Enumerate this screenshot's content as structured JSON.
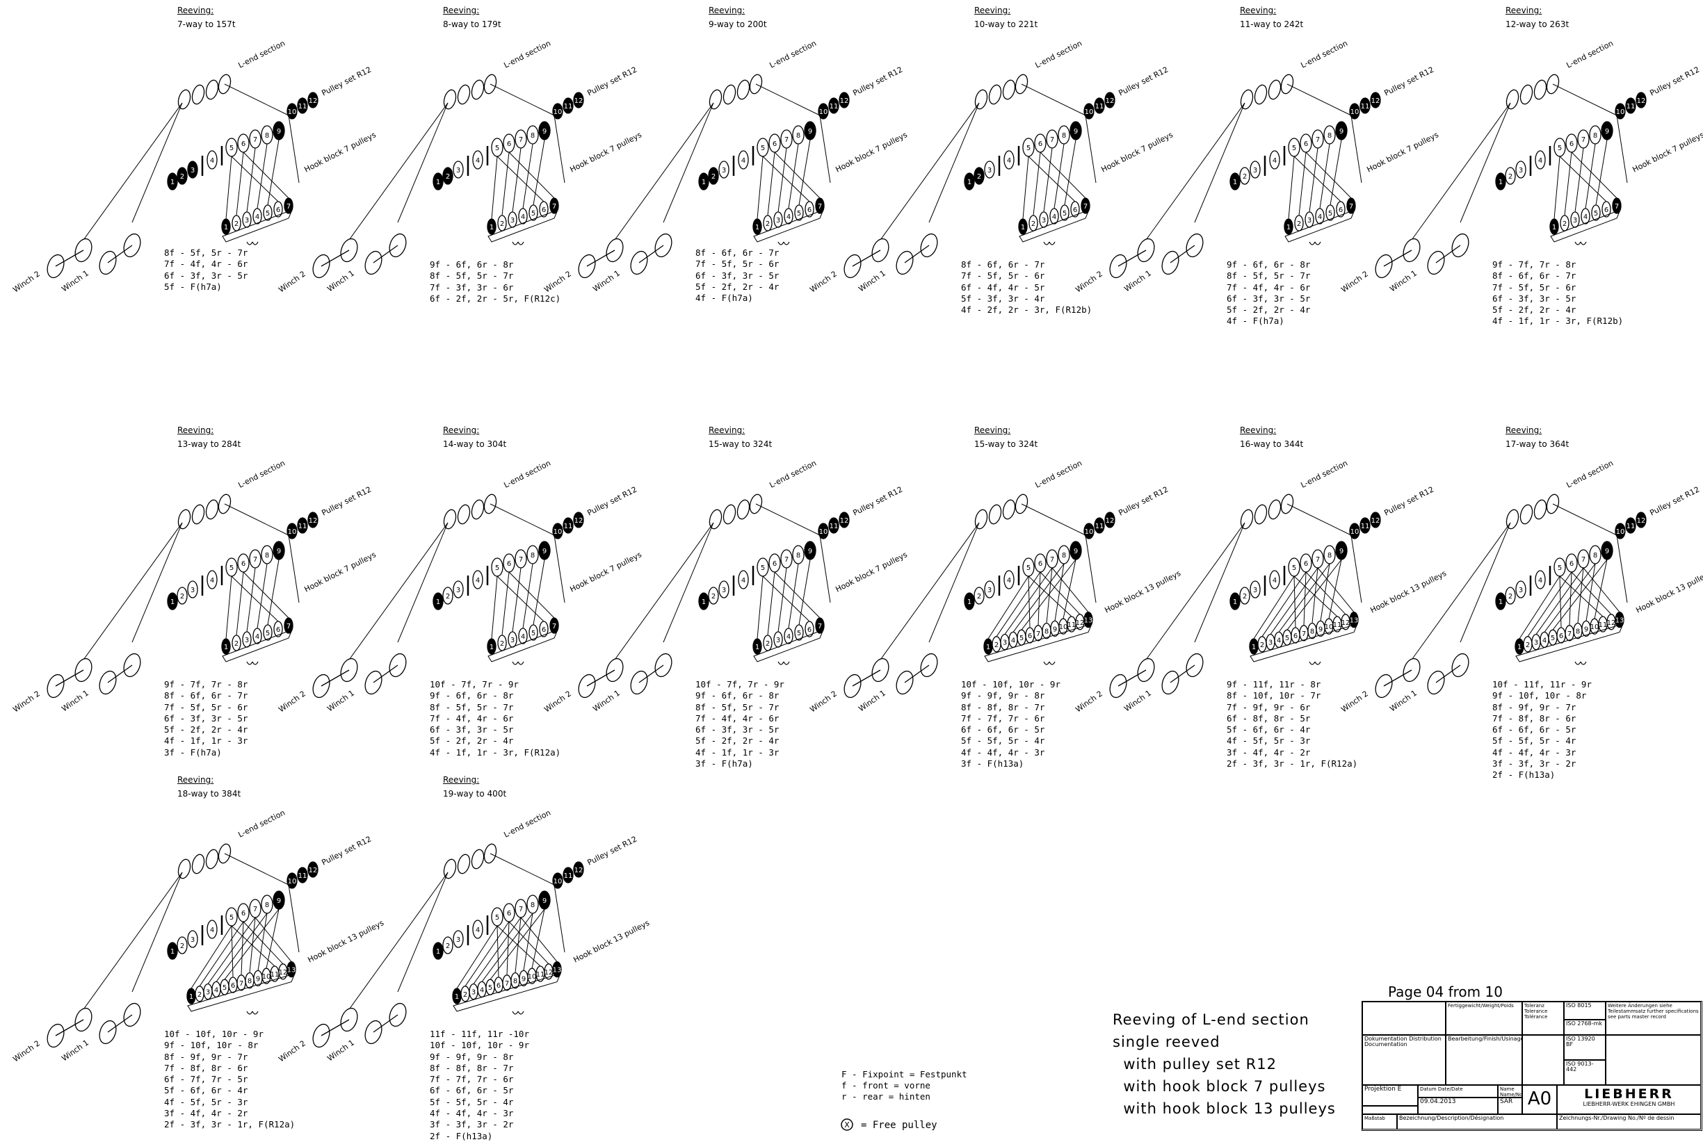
{
  "common": {
    "reeving_label": "Reeving:",
    "l_end_section": "L-end section",
    "pulley_set": "Pulley set R12",
    "hook_block_7": "Hook block 7 pulleys",
    "hook_block_13": "Hook block 13 pulleys",
    "winch_1": "Winch 1",
    "winch_2": "Winch 2"
  },
  "panels": [
    {
      "way": "7-way to 157t",
      "hook": "hook_block_7",
      "pulleys": 7,
      "rules": [
        "8f - 5f, 5r - 7r",
        "7f - 4f, 4r - 6r",
        "6f - 3f, 3r - 5r",
        "5f - F(h7a)"
      ]
    },
    {
      "way": "8-way to 179t",
      "hook": "hook_block_7",
      "pulleys": 7,
      "rules": [
        "9f - 6f, 6r - 8r",
        "8f - 5f, 5r - 7r",
        "7f - 3f, 3r - 6r",
        "6f - 2f, 2r - 5r, F(R12c)"
      ]
    },
    {
      "way": "9-way to 200t",
      "hook": "hook_block_7",
      "pulleys": 7,
      "rules": [
        "8f - 6f, 6r - 7r",
        "7f - 5f, 5r - 6r",
        "6f - 3f, 3r - 5r",
        "5f - 2f, 2r - 4r",
        "4f - F(h7a)"
      ]
    },
    {
      "way": "10-way to 221t",
      "hook": "hook_block_7",
      "pulleys": 7,
      "rules": [
        "8f - 6f, 6r - 7r",
        "7f - 5f, 5r - 6r",
        "6f - 4f, 4r - 5r",
        "5f - 3f, 3r - 4r",
        "4f - 2f, 2r - 3r, F(R12b)"
      ]
    },
    {
      "way": "11-way to 242t",
      "hook": "hook_block_7",
      "pulleys": 7,
      "rules": [
        "9f - 6f, 6r - 8r",
        "8f - 5f, 5r - 7r",
        "7f - 4f, 4r - 6r",
        "6f - 3f, 3r - 5r",
        "5f - 2f, 2r - 4r",
        "4f - F(h7a)"
      ]
    },
    {
      "way": "12-way to 263t",
      "hook": "hook_block_7",
      "pulleys": 7,
      "rules": [
        "9f - 7f, 7r - 8r",
        "8f - 6f, 6r - 7r",
        "7f - 5f, 5r - 6r",
        "6f - 3f, 3r - 5r",
        "5f - 2f, 2r - 4r",
        "4f - 1f, 1r - 3r, F(R12b)"
      ]
    },
    {
      "way": "13-way to 284t",
      "hook": "hook_block_7",
      "pulleys": 7,
      "rules": [
        "9f - 7f, 7r - 8r",
        "8f - 6f, 6r - 7r",
        "7f - 5f, 5r - 6r",
        "6f - 3f, 3r - 5r",
        "5f - 2f, 2r - 4r",
        "4f - 1f, 1r - 3r",
        "3f - F(h7a)"
      ]
    },
    {
      "way": "14-way to 304t",
      "hook": "hook_block_7",
      "pulleys": 7,
      "rules": [
        "10f - 7f, 7r - 9r",
        "9f - 6f, 6r - 8r",
        "8f - 5f, 5r - 7r",
        "7f - 4f, 4r - 6r",
        "6f - 3f, 3r - 5r",
        "5f - 2f, 2r - 4r",
        "4f - 1f, 1r - 3r, F(R12a)"
      ]
    },
    {
      "way": "15-way to 324t",
      "hook": "hook_block_7",
      "pulleys": 7,
      "rules": [
        "10f - 7f, 7r - 9r",
        "9f - 6f, 6r - 8r",
        "8f - 5f, 5r - 7r",
        "7f - 4f, 4r - 6r",
        "6f - 3f, 3r - 5r",
        "5f - 2f, 2r - 4r",
        "4f - 1f, 1r - 3r",
        "3f - F(h7a)"
      ]
    },
    {
      "way": "15-way to 324t",
      "hook": "hook_block_13",
      "pulleys": 13,
      "rules": [
        "10f - 10f, 10r - 9r",
        "9f - 9f, 9r - 8r",
        "8f - 8f, 8r - 7r",
        "7f - 7f, 7r - 6r",
        "6f - 6f, 6r - 5r",
        "5f - 5f, 5r - 4r",
        "4f - 4f, 4r - 3r",
        "3f - F(h13a)"
      ]
    },
    {
      "way": "16-way to 344t",
      "hook": "hook_block_13",
      "pulleys": 13,
      "rules": [
        "9f - 11f, 11r - 8r",
        "8f - 10f, 10r - 7r",
        "7f - 9f, 9r - 6r",
        "6f - 8f, 8r - 5r",
        "5f - 6f, 6r - 4r",
        "4f - 5f, 5r - 3r",
        "3f - 4f, 4r - 2r",
        "2f - 3f, 3r - 1r, F(R12a)"
      ]
    },
    {
      "way": "17-way to 364t",
      "hook": "hook_block_13",
      "pulleys": 13,
      "rules": [
        "10f - 11f, 11r - 9r",
        "9f - 10f, 10r - 8r",
        "8f - 9f, 9r - 7r",
        "7f - 8f, 8r - 6r",
        "6f - 6f, 6r - 5r",
        "5f - 5f, 5r - 4r",
        "4f - 4f, 4r - 3r",
        "3f - 3f, 3r - 2r",
        "2f - F(h13a)"
      ]
    },
    {
      "way": "18-way to 384t",
      "hook": "hook_block_13",
      "pulleys": 13,
      "rules": [
        "10f - 10f, 10r - 9r",
        "9f - 10f, 10r - 8r",
        "8f - 9f, 9r - 7r",
        "7f - 8f, 8r - 6r",
        "6f - 7f, 7r - 5r",
        "5f - 6f, 6r - 4r",
        "4f - 5f, 5r - 3r",
        "3f - 4f, 4r - 2r",
        "2f - 3f, 3r - 1r, F(R12a)"
      ]
    },
    {
      "way": "19-way to 400t",
      "hook": "hook_block_13",
      "pulleys": 13,
      "rules": [
        "11f - 11f, 11r -10r",
        "10f - 10f, 10r - 9r",
        "9f - 9f, 9r - 8r",
        "8f - 8f, 8r - 7r",
        "7f - 7f, 7r - 6r",
        "6f - 6f, 6r - 5r",
        "5f - 5f, 5r - 4r",
        "4f - 4f, 4r - 3r",
        "3f - 3f, 3r - 2r",
        "2f - F(h13a)"
      ]
    }
  ],
  "legend": {
    "fixpoint": "F - Fixpoint = Festpunkt",
    "front": "f - front = vorne",
    "rear": "r - rear = hinten",
    "free_pulley": "= Free pulley",
    "free_symbol": "X"
  },
  "title_lines": [
    "Reeving of L-end section",
    "single reeved",
    "  with pulley set R12",
    "  with hook block 7 pulleys",
    "  with hook block 13 pulleys"
  ],
  "page": "Page 04 from 10",
  "title_block": {
    "weight": "Fertiggewicht/Weight/Poids",
    "tolerances": "Toleranz Tolerance Tolérance",
    "dist": "Dokumentation Distribution Documentation",
    "finish": "Bearbeitung/Finish/Usinage",
    "projection": "Projektion E",
    "date_label": "Datum Date/Date",
    "name_label": "Name Name/Nom",
    "date": "09.04.2013",
    "name": "SAR",
    "format": "A0",
    "brand": "LIEBHERR",
    "company": "LIEBHERR-WERK EHINGEN GMBH",
    "description": "Bezeichnung/Description/Désignation",
    "drawing_no": "Zeichnungs-Nr./Drawing No./Nº de dessin",
    "iso1": "ISO 8015",
    "iso2": "ISO 2768-mk",
    "iso3": "ISO 13920 BF",
    "iso4": "ISO 9013-442",
    "note": "Weitere Änderungen siehe Teilestammsatz further specifications see parts master record",
    "sheet_label": "Maßstab"
  }
}
